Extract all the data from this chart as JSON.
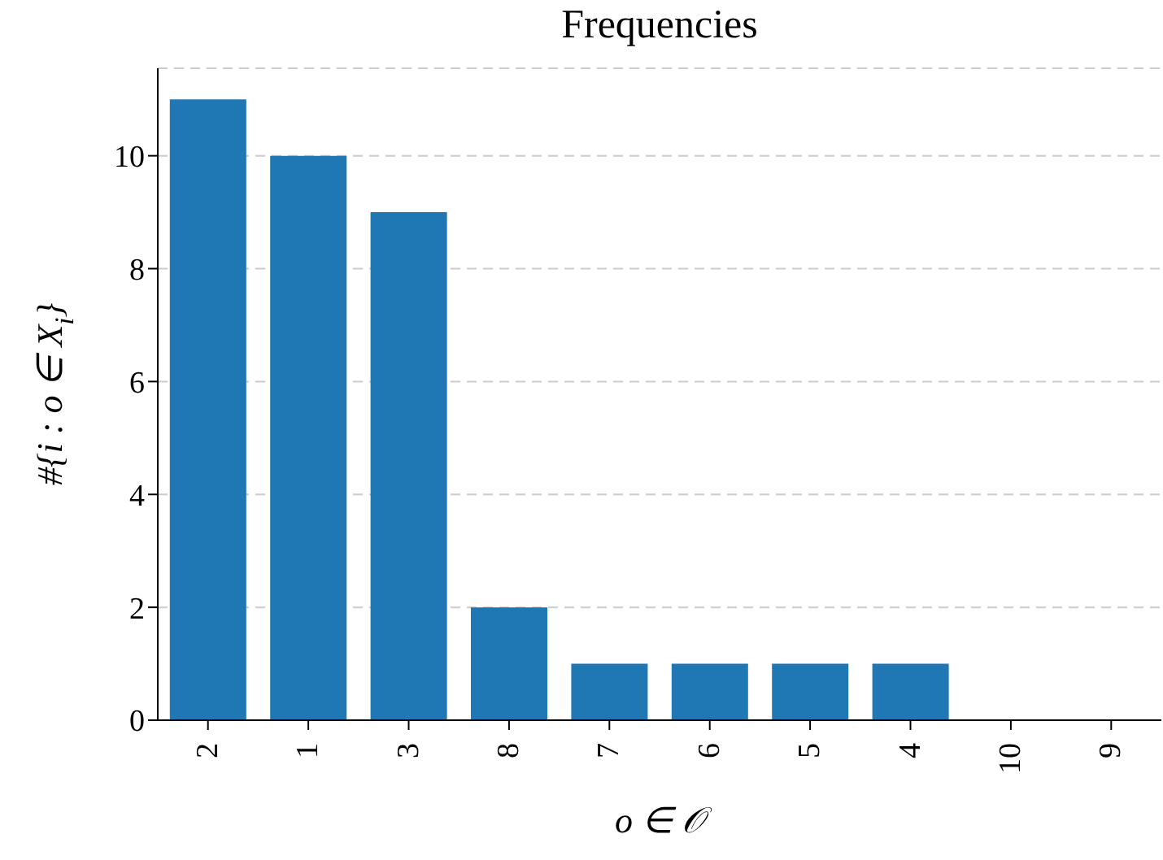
{
  "chart_data": {
    "type": "bar",
    "title": "Frequencies",
    "xlabel": "o ∈ 𝒪",
    "ylabel": "#{i : o ∈ X$_{i}$}",
    "categories": [
      "2",
      "1",
      "3",
      "8",
      "7",
      "6",
      "5",
      "4",
      "10",
      "9"
    ],
    "values": [
      11,
      10,
      9,
      2,
      1,
      1,
      1,
      1,
      0,
      0
    ],
    "color": "#1f77b4",
    "ylim": [
      0,
      11.55
    ],
    "yticks": [
      0,
      2,
      4,
      6,
      8,
      10
    ],
    "grid": "y"
  }
}
